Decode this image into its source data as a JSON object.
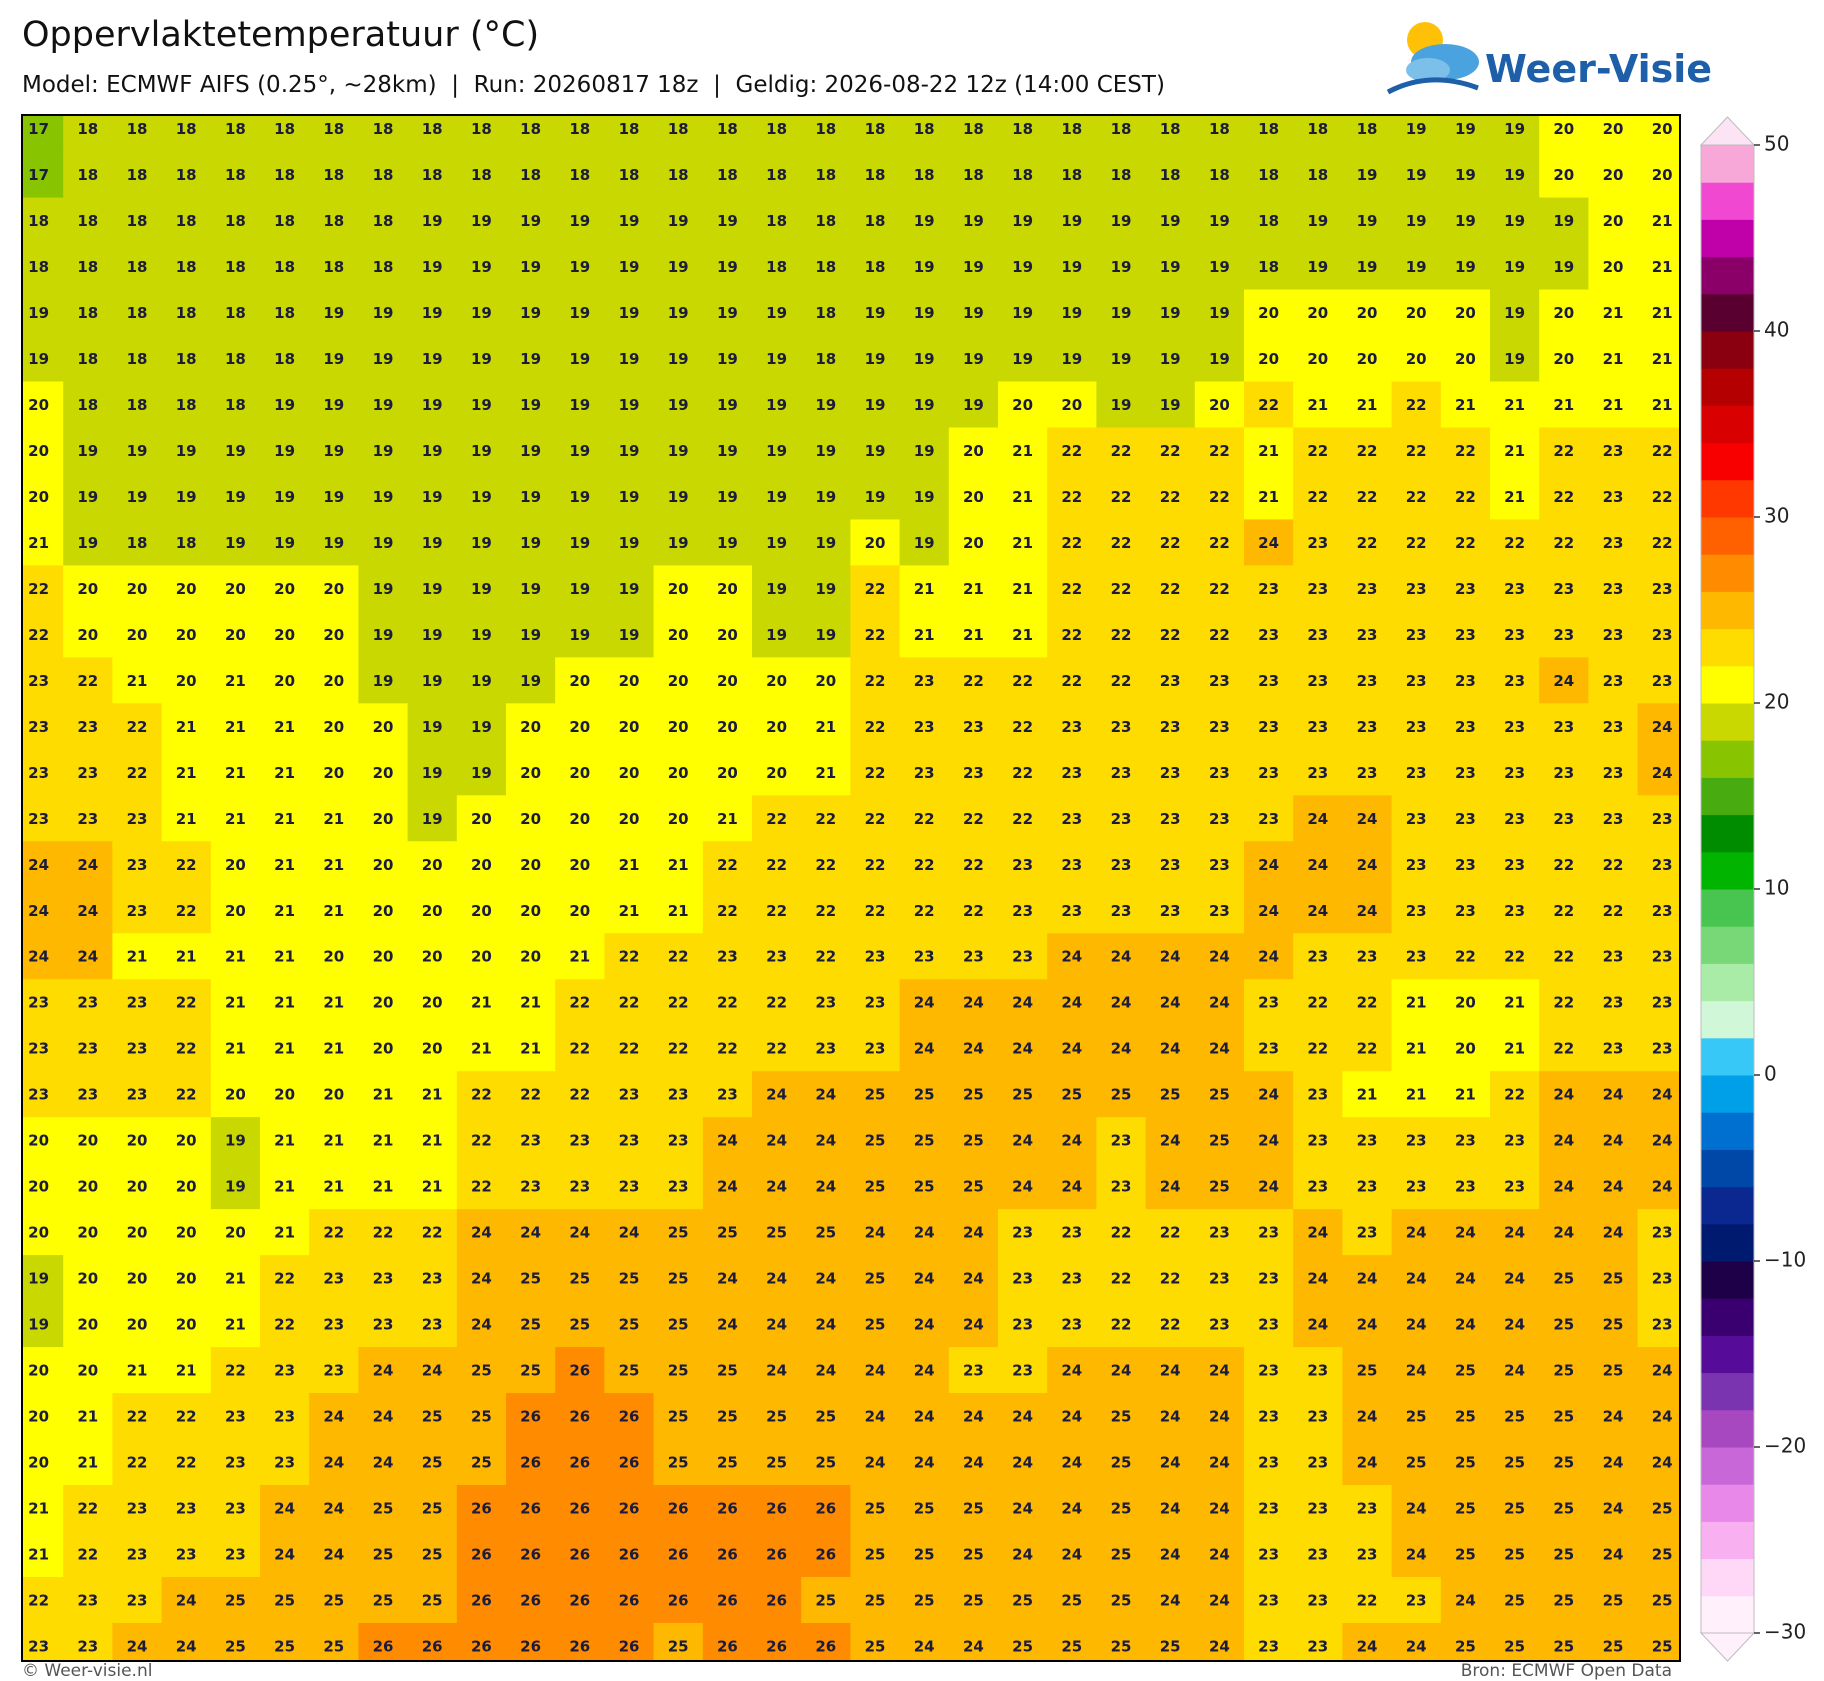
{
  "header": {
    "title": "Oppervlaktetemperatuur (°C)",
    "subtitle": "Model: ECMWF AIFS (0.25°, ~28km)  |  Run: 20260817 18z  |  Geldig: 2026-08-22 12z (14:00 CEST)"
  },
  "logo": {
    "text": "Weer-Visie"
  },
  "grid": {
    "rows": [
      [
        17,
        18,
        18,
        18,
        18,
        18,
        18,
        18,
        18,
        18,
        18,
        18,
        18,
        18,
        18,
        18,
        18,
        18,
        18,
        18,
        18,
        18,
        18,
        18,
        18,
        18,
        18,
        18,
        19,
        19,
        19,
        20,
        20,
        20
      ],
      [
        17,
        18,
        18,
        18,
        18,
        18,
        18,
        18,
        18,
        18,
        18,
        18,
        18,
        18,
        18,
        18,
        18,
        18,
        18,
        18,
        18,
        18,
        18,
        18,
        18,
        18,
        18,
        19,
        19,
        19,
        19,
        20,
        20,
        20
      ],
      [
        18,
        18,
        18,
        18,
        18,
        18,
        18,
        18,
        19,
        19,
        19,
        19,
        19,
        19,
        19,
        18,
        18,
        18,
        19,
        19,
        19,
        19,
        19,
        19,
        19,
        18,
        19,
        19,
        19,
        19,
        19,
        19,
        20,
        21
      ],
      [
        18,
        18,
        18,
        18,
        18,
        18,
        18,
        18,
        19,
        19,
        19,
        19,
        19,
        19,
        19,
        18,
        18,
        18,
        19,
        19,
        19,
        19,
        19,
        19,
        19,
        18,
        19,
        19,
        19,
        19,
        19,
        19,
        20,
        21
      ],
      [
        19,
        18,
        18,
        18,
        18,
        18,
        19,
        19,
        19,
        19,
        19,
        19,
        19,
        19,
        19,
        19,
        18,
        19,
        19,
        19,
        19,
        19,
        19,
        19,
        19,
        20,
        20,
        20,
        20,
        20,
        19,
        20,
        21,
        21
      ],
      [
        19,
        18,
        18,
        18,
        18,
        18,
        19,
        19,
        19,
        19,
        19,
        19,
        19,
        19,
        19,
        19,
        18,
        19,
        19,
        19,
        19,
        19,
        19,
        19,
        19,
        20,
        20,
        20,
        20,
        20,
        19,
        20,
        21,
        21
      ],
      [
        20,
        18,
        18,
        18,
        18,
        19,
        19,
        19,
        19,
        19,
        19,
        19,
        19,
        19,
        19,
        19,
        19,
        19,
        19,
        19,
        20,
        20,
        19,
        19,
        20,
        22,
        21,
        21,
        22,
        21,
        21,
        21,
        21,
        21
      ],
      [
        20,
        19,
        19,
        19,
        19,
        19,
        19,
        19,
        19,
        19,
        19,
        19,
        19,
        19,
        19,
        19,
        19,
        19,
        19,
        20,
        21,
        22,
        22,
        22,
        22,
        21,
        22,
        22,
        22,
        22,
        21,
        22,
        23,
        22
      ],
      [
        20,
        19,
        19,
        19,
        19,
        19,
        19,
        19,
        19,
        19,
        19,
        19,
        19,
        19,
        19,
        19,
        19,
        19,
        19,
        20,
        21,
        22,
        22,
        22,
        22,
        21,
        22,
        22,
        22,
        22,
        21,
        22,
        23,
        22
      ],
      [
        21,
        19,
        18,
        18,
        19,
        19,
        19,
        19,
        19,
        19,
        19,
        19,
        19,
        19,
        19,
        19,
        19,
        20,
        19,
        20,
        21,
        22,
        22,
        22,
        22,
        24,
        23,
        22,
        22,
        22,
        22,
        22,
        23,
        22
      ],
      [
        22,
        20,
        20,
        20,
        20,
        20,
        20,
        19,
        19,
        19,
        19,
        19,
        19,
        20,
        20,
        19,
        19,
        22,
        21,
        21,
        21,
        22,
        22,
        22,
        22,
        23,
        23,
        23,
        23,
        23,
        23,
        23,
        23,
        23
      ],
      [
        22,
        20,
        20,
        20,
        20,
        20,
        20,
        19,
        19,
        19,
        19,
        19,
        19,
        20,
        20,
        19,
        19,
        22,
        21,
        21,
        21,
        22,
        22,
        22,
        22,
        23,
        23,
        23,
        23,
        23,
        23,
        23,
        23,
        23
      ],
      [
        23,
        22,
        21,
        20,
        21,
        20,
        20,
        19,
        19,
        19,
        19,
        20,
        20,
        20,
        20,
        20,
        20,
        22,
        23,
        22,
        22,
        22,
        22,
        23,
        23,
        23,
        23,
        23,
        23,
        23,
        23,
        24,
        23,
        23
      ],
      [
        23,
        23,
        22,
        21,
        21,
        21,
        20,
        20,
        19,
        19,
        20,
        20,
        20,
        20,
        20,
        20,
        21,
        22,
        23,
        23,
        22,
        23,
        23,
        23,
        23,
        23,
        23,
        23,
        23,
        23,
        23,
        23,
        23,
        24
      ],
      [
        23,
        23,
        22,
        21,
        21,
        21,
        20,
        20,
        19,
        19,
        20,
        20,
        20,
        20,
        20,
        20,
        21,
        22,
        23,
        23,
        22,
        23,
        23,
        23,
        23,
        23,
        23,
        23,
        23,
        23,
        23,
        23,
        23,
        24
      ],
      [
        23,
        23,
        23,
        21,
        21,
        21,
        21,
        20,
        19,
        20,
        20,
        20,
        20,
        20,
        21,
        22,
        22,
        22,
        22,
        22,
        22,
        23,
        23,
        23,
        23,
        23,
        24,
        24,
        23,
        23,
        23,
        23,
        23,
        23
      ],
      [
        24,
        24,
        23,
        22,
        20,
        21,
        21,
        20,
        20,
        20,
        20,
        20,
        21,
        21,
        22,
        22,
        22,
        22,
        22,
        22,
        23,
        23,
        23,
        23,
        23,
        24,
        24,
        24,
        23,
        23,
        23,
        22,
        22,
        23
      ],
      [
        24,
        24,
        23,
        22,
        20,
        21,
        21,
        20,
        20,
        20,
        20,
        20,
        21,
        21,
        22,
        22,
        22,
        22,
        22,
        22,
        23,
        23,
        23,
        23,
        23,
        24,
        24,
        24,
        23,
        23,
        23,
        22,
        22,
        23
      ],
      [
        24,
        24,
        21,
        21,
        21,
        21,
        20,
        20,
        20,
        20,
        20,
        21,
        22,
        22,
        23,
        23,
        22,
        23,
        23,
        23,
        23,
        24,
        24,
        24,
        24,
        24,
        23,
        23,
        23,
        22,
        22,
        22,
        23,
        23
      ],
      [
        23,
        23,
        23,
        22,
        21,
        21,
        21,
        20,
        20,
        21,
        21,
        22,
        22,
        22,
        22,
        22,
        23,
        23,
        24,
        24,
        24,
        24,
        24,
        24,
        24,
        23,
        22,
        22,
        21,
        20,
        21,
        22,
        23,
        23
      ],
      [
        23,
        23,
        23,
        22,
        21,
        21,
        21,
        20,
        20,
        21,
        21,
        22,
        22,
        22,
        22,
        22,
        23,
        23,
        24,
        24,
        24,
        24,
        24,
        24,
        24,
        23,
        22,
        22,
        21,
        20,
        21,
        22,
        23,
        23
      ],
      [
        23,
        23,
        23,
        22,
        20,
        20,
        20,
        21,
        21,
        22,
        22,
        22,
        23,
        23,
        23,
        24,
        24,
        25,
        25,
        25,
        25,
        25,
        25,
        25,
        25,
        24,
        23,
        21,
        21,
        21,
        22,
        24,
        24,
        24
      ],
      [
        20,
        20,
        20,
        20,
        19,
        21,
        21,
        21,
        21,
        22,
        23,
        23,
        23,
        23,
        24,
        24,
        24,
        25,
        25,
        25,
        24,
        24,
        23,
        24,
        25,
        24,
        23,
        23,
        23,
        23,
        23,
        24,
        24,
        24
      ],
      [
        20,
        20,
        20,
        20,
        19,
        21,
        21,
        21,
        21,
        22,
        23,
        23,
        23,
        23,
        24,
        24,
        24,
        25,
        25,
        25,
        24,
        24,
        23,
        24,
        25,
        24,
        23,
        23,
        23,
        23,
        23,
        24,
        24,
        24
      ],
      [
        20,
        20,
        20,
        20,
        20,
        21,
        22,
        22,
        22,
        24,
        24,
        24,
        24,
        25,
        25,
        25,
        25,
        24,
        24,
        24,
        23,
        23,
        22,
        22,
        23,
        23,
        24,
        23,
        24,
        24,
        24,
        24,
        24,
        23
      ],
      [
        19,
        20,
        20,
        20,
        21,
        22,
        23,
        23,
        23,
        24,
        25,
        25,
        25,
        25,
        24,
        24,
        24,
        25,
        24,
        24,
        23,
        23,
        22,
        22,
        23,
        23,
        24,
        24,
        24,
        24,
        24,
        25,
        25,
        23
      ],
      [
        19,
        20,
        20,
        20,
        21,
        22,
        23,
        23,
        23,
        24,
        25,
        25,
        25,
        25,
        24,
        24,
        24,
        25,
        24,
        24,
        23,
        23,
        22,
        22,
        23,
        23,
        24,
        24,
        24,
        24,
        24,
        25,
        25,
        23
      ],
      [
        20,
        20,
        21,
        21,
        22,
        23,
        23,
        24,
        24,
        25,
        25,
        26,
        25,
        25,
        25,
        24,
        24,
        24,
        24,
        23,
        23,
        24,
        24,
        24,
        24,
        23,
        23,
        25,
        24,
        25,
        24,
        25,
        25,
        24
      ],
      [
        20,
        21,
        22,
        22,
        23,
        23,
        24,
        24,
        25,
        25,
        26,
        26,
        26,
        25,
        25,
        25,
        25,
        24,
        24,
        24,
        24,
        24,
        25,
        24,
        24,
        23,
        23,
        24,
        25,
        25,
        25,
        25,
        24,
        24
      ],
      [
        20,
        21,
        22,
        22,
        23,
        23,
        24,
        24,
        25,
        25,
        26,
        26,
        26,
        25,
        25,
        25,
        25,
        24,
        24,
        24,
        24,
        24,
        25,
        24,
        24,
        23,
        23,
        24,
        25,
        25,
        25,
        25,
        24,
        24
      ],
      [
        21,
        22,
        23,
        23,
        23,
        24,
        24,
        25,
        25,
        26,
        26,
        26,
        26,
        26,
        26,
        26,
        26,
        25,
        25,
        25,
        24,
        24,
        25,
        24,
        24,
        23,
        23,
        23,
        24,
        25,
        25,
        25,
        24,
        25
      ],
      [
        21,
        22,
        23,
        23,
        23,
        24,
        24,
        25,
        25,
        26,
        26,
        26,
        26,
        26,
        26,
        26,
        26,
        25,
        25,
        25,
        24,
        24,
        25,
        24,
        24,
        23,
        23,
        23,
        24,
        25,
        25,
        25,
        24,
        25
      ],
      [
        22,
        23,
        23,
        24,
        25,
        25,
        25,
        25,
        25,
        26,
        26,
        26,
        26,
        26,
        26,
        26,
        25,
        25,
        25,
        25,
        25,
        25,
        25,
        24,
        24,
        23,
        23,
        22,
        23,
        24,
        25,
        25,
        25,
        25
      ],
      [
        23,
        23,
        24,
        24,
        25,
        25,
        25,
        26,
        26,
        26,
        26,
        26,
        26,
        25,
        26,
        26,
        26,
        25,
        24,
        24,
        25,
        25,
        25,
        25,
        24,
        23,
        23,
        24,
        24,
        25,
        25,
        25,
        25,
        25
      ]
    ]
  },
  "colorbar": {
    "lim": [
      -30,
      50
    ],
    "ticks": [
      {
        "value": -30,
        "label": "−30"
      },
      {
        "value": -20,
        "label": "−20"
      },
      {
        "value": -10,
        "label": "−10"
      },
      0,
      10,
      20,
      30,
      40,
      50
    ],
    "colors": [
      "#fff0fc",
      "#ffd8f8",
      "#f8b0f0",
      "#e888e8",
      "#c868d8",
      "#a848c0",
      "#7a34b0",
      "#560c98",
      "#3a0070",
      "#1e0048",
      "#001a70",
      "#0a2890",
      "#0048a8",
      "#0070d0",
      "#00a0e8",
      "#38c8f8",
      "#d0f8d8",
      "#a8eca8",
      "#78d878",
      "#48c450",
      "#00b400",
      "#008c00",
      "#48ac10",
      "#88c400",
      "#c8d800",
      "#ffff00",
      "#ffdc00",
      "#ffb800",
      "#ff8c00",
      "#ff6000",
      "#ff3800",
      "#f80000",
      "#d80000",
      "#b40000",
      "#8a0010",
      "#5a0030",
      "#8a0068",
      "#c000a8",
      "#f048d0",
      "#f8a8d8"
    ],
    "top_color": "#fce4f4"
  },
  "footer": {
    "left": "© Weer-visie.nl",
    "right": "Bron: ECMWF Open Data"
  }
}
